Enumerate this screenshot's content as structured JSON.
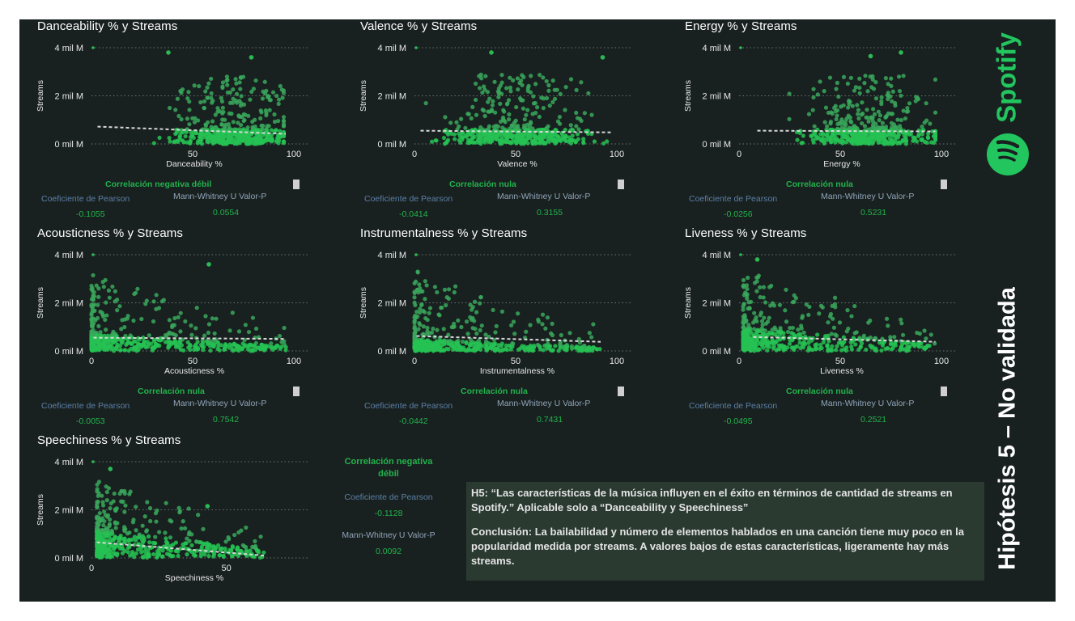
{
  "colors": {
    "background": "#192120",
    "accent": "#22b24c",
    "point": "#2ab955",
    "trend": "#d0d0d0"
  },
  "panels": [
    {
      "title": "Danceability % y Streams",
      "xlabel": "Danceability %",
      "ylabel": "Streams",
      "correlation": "Correlación negativa débil",
      "pearson_label": "Coeficiente de Pearson",
      "mw_label": "Mann-Whitney U Valor-P",
      "pearson": "-0.1055",
      "pvalue": "0.0554"
    },
    {
      "title": "Valence % y Streams",
      "xlabel": "Valence %",
      "ylabel": "Streams",
      "correlation": "Correlación nula",
      "pearson_label": "Coeficiente de Pearson",
      "mw_label": "Mann-Whitney U Valor-P",
      "pearson": "-0.0414",
      "pvalue": "0.3155"
    },
    {
      "title": "Energy % y Streams",
      "xlabel": "Energy %",
      "ylabel": "Streams",
      "correlation": "Correlación nula",
      "pearson_label": "Coeficiente de Pearson",
      "mw_label": "Mann-Whitney U Valor-P",
      "pearson": "-0.0256",
      "pvalue": "0.5231"
    },
    {
      "title": "Acousticness % y Streams",
      "xlabel": "Acousticness  %",
      "ylabel": "Streams",
      "correlation": "Correlación nula",
      "pearson_label": "Coeficiente de Pearson",
      "mw_label": "Mann-Whitney U Valor-P",
      "pearson": "-0.0053",
      "pvalue": "0.7542"
    },
    {
      "title": "Instrumentalness % y Streams",
      "xlabel": "Instrumentalness  %",
      "ylabel": "Streams",
      "correlation": "Correlación nula",
      "pearson_label": "Coeficiente de Pearson",
      "mw_label": "Mann-Whitney U Valor-P",
      "pearson": "-0.0442",
      "pvalue": "0.7431"
    },
    {
      "title": "Liveness % y Streams",
      "xlabel": "Liveness  %",
      "ylabel": "Streams",
      "correlation": "Correlación nula",
      "pearson_label": "Coeficiente de Pearson",
      "mw_label": "Mann-Whitney U Valor-P",
      "pearson": "-0.0495",
      "pvalue": "0.2521"
    },
    {
      "title": "Speechiness % y Streams",
      "xlabel": "Speechiness %",
      "ylabel": "Streams"
    }
  ],
  "summary": {
    "correlation": "Correlación negativa débil",
    "pearson_label": "Coeficiente de Pearson",
    "pearson": "-0.1128",
    "mw_label": "Mann-Whitney U Valor-P",
    "pvalue": "0.0092"
  },
  "conclusion": {
    "hypothesis": "H5: “Las características de la música influyen en el éxito en términos de cantidad de streams en Spotify.” Aplicable solo a “Danceability y Speechiness”",
    "conclusion": "Conclusión:  La bailabilidad  y número de elementos hablados en una canción tiene  muy poco en la popularidad medida por streams. A valores bajos de estas características, ligeramente hay más streams."
  },
  "logo": {
    "text": "Spotify",
    "icon": "spotify-logo-icon"
  },
  "hypothesis_title": "Hipótesis 5 – No validada",
  "chart_data": [
    {
      "type": "scatter",
      "title": "Danceability % y Streams",
      "xlabel": "Danceability %",
      "ylabel": "Streams",
      "xlim": [
        0,
        100
      ],
      "ylim": [
        0,
        4
      ],
      "x_ticks": [
        50,
        100
      ],
      "y_ticks": [
        "0 mil M",
        "2 mil M",
        "4 mil M"
      ],
      "grid": "horizontal dotted",
      "trend": {
        "x": [
          3,
          96
        ],
        "y": [
          0.72,
          0.42
        ]
      },
      "outliers": [
        {
          "x": 38,
          "y": 3.8
        },
        {
          "x": 79,
          "y": 3.6
        }
      ],
      "cloud": {
        "x_range": [
          18,
          95
        ],
        "dense_band_max": 0.6,
        "y_max": 2.8,
        "peak_x": 70
      }
    },
    {
      "type": "scatter",
      "title": "Valence % y Streams",
      "xlabel": "Valence %",
      "ylabel": "Streams",
      "xlim": [
        0,
        100
      ],
      "ylim": [
        0,
        4
      ],
      "x_ticks": [
        0,
        50,
        100
      ],
      "y_ticks": [
        "0 mil M",
        "2 mil M",
        "4 mil M"
      ],
      "grid": "horizontal dotted",
      "trend": {
        "x": [
          3,
          97
        ],
        "y": [
          0.55,
          0.48
        ]
      },
      "outliers": [
        {
          "x": 38,
          "y": 3.8
        },
        {
          "x": 93,
          "y": 3.6
        }
      ],
      "cloud": {
        "x_range": [
          3,
          97
        ],
        "dense_band_max": 0.6,
        "y_max": 2.9,
        "peak_x": 50
      }
    },
    {
      "type": "scatter",
      "title": "Energy % y Streams",
      "xlabel": "Energy %",
      "ylabel": "Streams",
      "xlim": [
        0,
        100
      ],
      "ylim": [
        0,
        4
      ],
      "x_ticks": [
        0,
        50,
        100
      ],
      "y_ticks": [
        "0 mil M",
        "2 mil M",
        "4 mil M"
      ],
      "grid": "horizontal dotted",
      "trend": {
        "x": [
          9,
          97
        ],
        "y": [
          0.55,
          0.52
        ]
      },
      "outliers": [
        {
          "x": 65,
          "y": 3.65
        },
        {
          "x": 80,
          "y": 3.8
        }
      ],
      "cloud": {
        "x_range": [
          12,
          97
        ],
        "dense_band_max": 0.6,
        "y_max": 2.9,
        "peak_x": 65
      }
    },
    {
      "type": "scatter",
      "title": "Acousticness % y Streams",
      "xlabel": "Acousticness  %",
      "ylabel": "Streams",
      "xlim": [
        0,
        100
      ],
      "ylim": [
        0,
        4
      ],
      "x_ticks": [
        0,
        50,
        100
      ],
      "y_ticks": [
        "0 mil M",
        "2 mil M",
        "4 mil M"
      ],
      "grid": "horizontal dotted",
      "trend": {
        "x": [
          1,
          96
        ],
        "y": [
          0.55,
          0.5
        ]
      },
      "outliers": [
        {
          "x": 58,
          "y": 3.6
        }
      ],
      "cloud": {
        "x_range": [
          0,
          97
        ],
        "dense_band_max": 0.6,
        "y_max": 2.8,
        "peak_x": 5
      }
    },
    {
      "type": "scatter",
      "title": "Instrumentalness % y Streams",
      "xlabel": "Instrumentalness  %",
      "ylabel": "Streams",
      "xlim": [
        0,
        100
      ],
      "ylim": [
        0,
        4
      ],
      "x_ticks": [
        0,
        50,
        100
      ],
      "y_ticks": [
        "0 mil M",
        "2 mil M",
        "4 mil M"
      ],
      "grid": "horizontal dotted",
      "trend": {
        "x": [
          1,
          92
        ],
        "y": [
          0.62,
          0.38
        ]
      },
      "outliers": [],
      "cloud": {
        "x_range": [
          0,
          92
        ],
        "dense_band_max": 0.4,
        "y_max": 2.9,
        "peak_x": 0
      }
    },
    {
      "type": "scatter",
      "title": "Liveness % y Streams",
      "xlabel": "Liveness  %",
      "ylabel": "Streams",
      "xlim": [
        0,
        100
      ],
      "ylim": [
        0,
        4
      ],
      "x_ticks": [
        0,
        50,
        100
      ],
      "y_ticks": [
        "0 mil M",
        "2 mil M",
        "4 mil M"
      ],
      "grid": "horizontal dotted",
      "trend": {
        "x": [
          7,
          97
        ],
        "y": [
          0.58,
          0.38
        ]
      },
      "outliers": [
        {
          "x": 9,
          "y": 3.8
        }
      ],
      "cloud": {
        "x_range": [
          2,
          97
        ],
        "dense_band_max": 0.8,
        "y_max": 2.9,
        "peak_x": 10
      }
    },
    {
      "type": "scatter",
      "title": "Speechiness % y Streams",
      "xlabel": "Speechiness %",
      "ylabel": "Streams",
      "xlim": [
        0,
        75
      ],
      "ylim": [
        0,
        4
      ],
      "x_ticks": [
        0,
        50
      ],
      "y_ticks": [
        "0 mil M",
        "2 mil M",
        "4 mil M"
      ],
      "grid": "horizontal dotted",
      "trend": {
        "x": [
          2,
          64
        ],
        "y": [
          0.65,
          0.1
        ]
      },
      "outliers": [
        {
          "x": 7,
          "y": 3.7
        },
        {
          "x": 43,
          "y": 2.15
        }
      ],
      "cloud": {
        "x_range": [
          2,
          64
        ],
        "dense_band_max": 1.0,
        "y_max": 2.9,
        "peak_x": 4
      }
    }
  ]
}
